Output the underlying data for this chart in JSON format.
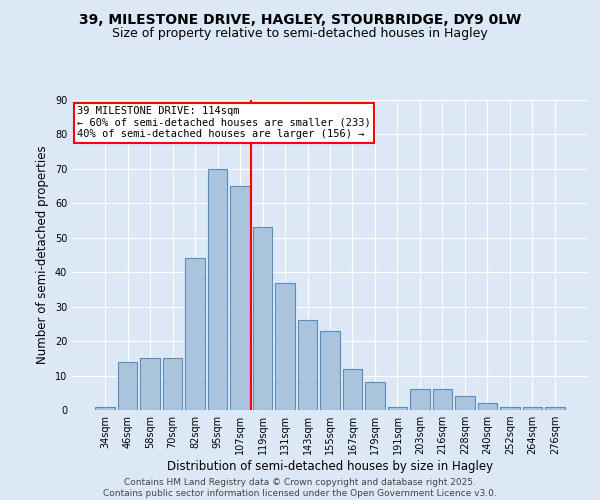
{
  "title": "39, MILESTONE DRIVE, HAGLEY, STOURBRIDGE, DY9 0LW",
  "subtitle": "Size of property relative to semi-detached houses in Hagley",
  "xlabel": "Distribution of semi-detached houses by size in Hagley",
  "ylabel": "Number of semi-detached properties",
  "categories": [
    "34sqm",
    "46sqm",
    "58sqm",
    "70sqm",
    "82sqm",
    "95sqm",
    "107sqm",
    "119sqm",
    "131sqm",
    "143sqm",
    "155sqm",
    "167sqm",
    "179sqm",
    "191sqm",
    "203sqm",
    "216sqm",
    "228sqm",
    "240sqm",
    "252sqm",
    "264sqm",
    "276sqm"
  ],
  "values": [
    1,
    14,
    15,
    15,
    44,
    70,
    65,
    53,
    37,
    26,
    23,
    12,
    8,
    1,
    6,
    6,
    4,
    2,
    1,
    1,
    1
  ],
  "bar_color": "#aac4de",
  "bar_edge_color": "#5b8db8",
  "property_label": "39 MILESTONE DRIVE: 114sqm",
  "annotation_line1": "← 60% of semi-detached houses are smaller (233)",
  "annotation_line2": "40% of semi-detached houses are larger (156) →",
  "vline_x": 6.5,
  "vline_color": "red",
  "ylim": [
    0,
    90
  ],
  "yticks": [
    0,
    10,
    20,
    30,
    40,
    50,
    60,
    70,
    80,
    90
  ],
  "bg_color": "#dce8f5",
  "footer_line1": "Contains HM Land Registry data © Crown copyright and database right 2025.",
  "footer_line2": "Contains public sector information licensed under the Open Government Licence v3.0.",
  "title_fontsize": 10,
  "subtitle_fontsize": 9,
  "axis_label_fontsize": 8.5,
  "tick_fontsize": 7,
  "annotation_fontsize": 7.5,
  "footer_fontsize": 6.5
}
